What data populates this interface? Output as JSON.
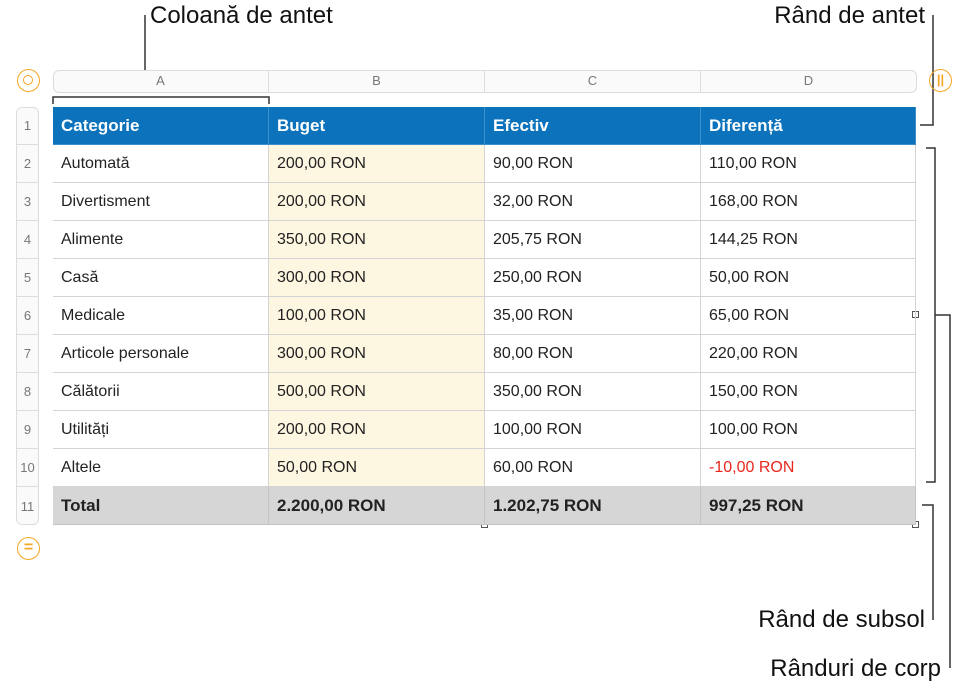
{
  "callouts": {
    "header_column": "Coloană de antet",
    "header_row": "Rând de antet",
    "footer_row": "Rând de subsol",
    "body_rows": "Rânduri de corp"
  },
  "table": {
    "column_letters": [
      "A",
      "B",
      "C",
      "D"
    ],
    "row_numbers": [
      1,
      2,
      3,
      4,
      5,
      6,
      7,
      8,
      9,
      10,
      11
    ],
    "header": [
      "Categorie",
      "Buget",
      "Efectiv",
      "Diferență"
    ],
    "rows": [
      [
        "Automată",
        "200,00 RON",
        "90,00 RON",
        "110,00 RON"
      ],
      [
        "Divertisment",
        "200,00 RON",
        "32,00 RON",
        "168,00 RON"
      ],
      [
        "Alimente",
        "350,00 RON",
        "205,75 RON",
        "144,25 RON"
      ],
      [
        "Casă",
        "300,00 RON",
        "250,00 RON",
        "50,00 RON"
      ],
      [
        "Medicale",
        "100,00 RON",
        "35,00 RON",
        "65,00 RON"
      ],
      [
        "Articole personale",
        "300,00 RON",
        "80,00 RON",
        "220,00 RON"
      ],
      [
        "Călătorii",
        "500,00 RON",
        "350,00 RON",
        "150,00 RON"
      ],
      [
        "Utilități",
        "200,00 RON",
        "100,00 RON",
        "100,00 RON"
      ],
      [
        "Altele",
        "50,00 RON",
        "60,00 RON",
        "-10,00 RON"
      ]
    ],
    "footer": [
      "Total",
      "2.200,00 RON",
      "1.202,75 RON",
      "997,25 RON"
    ]
  }
}
